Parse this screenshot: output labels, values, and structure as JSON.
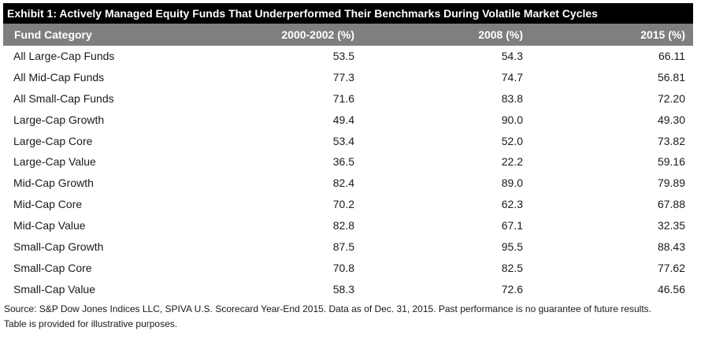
{
  "title": "Exhibit 1: Actively Managed Equity Funds That Underperformed Their Benchmarks During Volatile Market Cycles",
  "headers": [
    "Fund Category",
    "2000-2002 (%)",
    "2008 (%)",
    "2015 (%)"
  ],
  "rows": [
    [
      "All Large-Cap Funds",
      "53.5",
      "54.3",
      "66.11"
    ],
    [
      "All Mid-Cap Funds",
      "77.3",
      "74.7",
      "56.81"
    ],
    [
      "All Small-Cap Funds",
      "71.6",
      "83.8",
      "72.20"
    ],
    [
      "Large-Cap Growth",
      "49.4",
      "90.0",
      "49.30"
    ],
    [
      "Large-Cap Core",
      "53.4",
      "52.0",
      "73.82"
    ],
    [
      "Large-Cap Value",
      "36.5",
      "22.2",
      "59.16"
    ],
    [
      "Mid-Cap Growth",
      "82.4",
      "89.0",
      "79.89"
    ],
    [
      "Mid-Cap Core",
      "70.2",
      "62.3",
      "67.88"
    ],
    [
      "Mid-Cap Value",
      "82.8",
      "67.1",
      "32.35"
    ],
    [
      "Small-Cap Growth",
      "87.5",
      "95.5",
      "88.43"
    ],
    [
      "Small-Cap Core",
      "70.8",
      "82.5",
      "77.62"
    ],
    [
      "Small-Cap Value",
      "58.3",
      "72.6",
      "46.56"
    ]
  ],
  "footer": [
    "Source: S&P Dow Jones Indices LLC, SPIVA U.S. Scorecard Year-End 2015.  Data as of Dec. 31, 2015.  Past performance is no guarantee of future results.",
    "Table is provided for illustrative purposes."
  ]
}
